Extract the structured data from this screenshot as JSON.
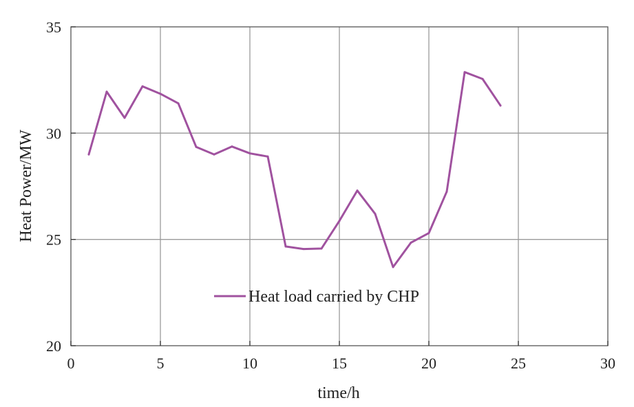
{
  "chart_data": {
    "type": "line",
    "xlabel": "time/h",
    "ylabel": "Heat Power/MW",
    "xlim": [
      0,
      30
    ],
    "ylim": [
      20,
      35
    ],
    "xticks": [
      "0",
      "5",
      "10",
      "15",
      "20",
      "25",
      "30"
    ],
    "yticks": [
      "20",
      "25",
      "30",
      "35"
    ],
    "grid": true,
    "legend_position": "lower-center",
    "series": [
      {
        "name": "Heat load carried by CHP",
        "color": "#a0529f",
        "x": [
          1,
          2,
          3,
          4,
          5,
          6,
          7,
          8,
          9,
          10,
          11,
          12,
          13,
          14,
          15,
          16,
          17,
          18,
          19,
          20,
          21,
          22,
          23,
          24
        ],
        "y": [
          29.0,
          31.95,
          30.72,
          32.2,
          31.85,
          31.4,
          29.35,
          29.0,
          29.37,
          29.05,
          28.9,
          24.67,
          24.55,
          24.57,
          25.87,
          27.3,
          26.2,
          23.7,
          24.85,
          25.3,
          27.25,
          32.87,
          32.55,
          31.3
        ]
      }
    ]
  }
}
